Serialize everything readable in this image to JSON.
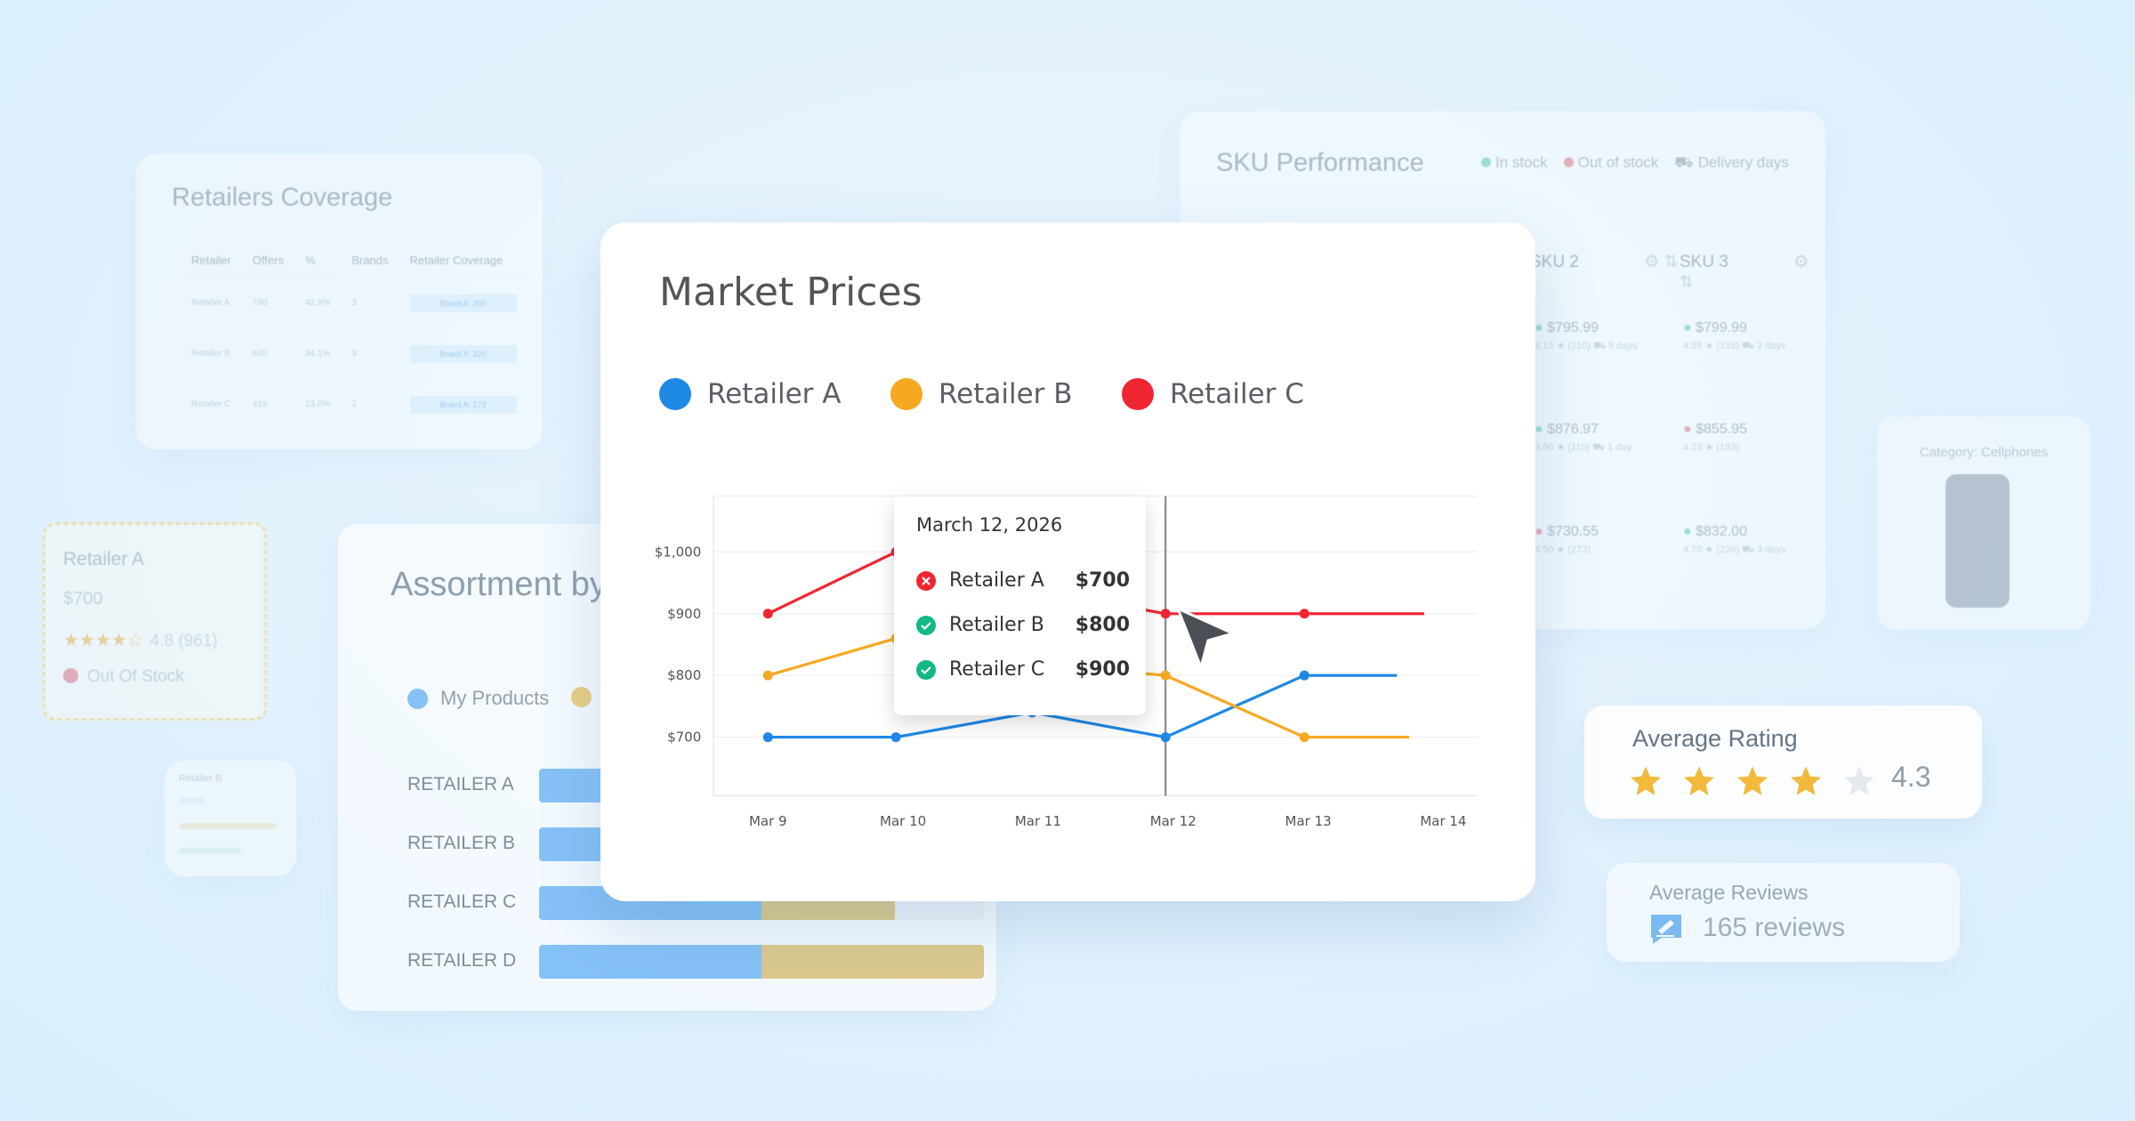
{
  "retailers_coverage": {
    "title": "Retailers Coverage",
    "headers": [
      "Retailer",
      "Offers",
      "%",
      "Brands",
      "Retailer Coverage"
    ],
    "rows": [
      {
        "retailer": "Retailer A",
        "offers": "780",
        "pct": "42.9%",
        "brands": "3",
        "coverage": "Brand A: 350"
      },
      {
        "retailer": "Retailer B",
        "offers": "620",
        "pct": "34.1%",
        "brands": "3",
        "coverage": "Brand A: 320"
      },
      {
        "retailer": "Retailer C",
        "offers": "419",
        "pct": "23.0%",
        "brands": "2",
        "coverage": "Brand A: 279"
      }
    ]
  },
  "sku_performance": {
    "title": "SKU Performance",
    "legend": [
      "In stock",
      "Out of stock",
      "Delivery days"
    ],
    "legend_colors": [
      "#35c29a",
      "#e05563",
      "#9aa4ae"
    ],
    "columns": [
      "SKU 2",
      "SKU 3"
    ],
    "cells": [
      [
        {
          "price": "$795.99",
          "meta": "4.13 ★ (210)  ⛟ 5 days"
        },
        {
          "price": "$799.99",
          "meta": "4.55 ★ (318)  ⛟ 2 days"
        }
      ],
      [
        {
          "price": "$876.97",
          "meta": "3.90 ★ (110)  ⛟ 1 day"
        },
        {
          "price": "$855.95",
          "meta": "4.23 ★ (183)"
        }
      ],
      [
        {
          "price": "$730.55",
          "meta": "4.50 ★ (273)"
        },
        {
          "price": "$832.00",
          "meta": "4.70 ★ (236)  ⛟ 3 days"
        }
      ]
    ]
  },
  "category": {
    "label": "Category: Cellphones"
  },
  "retailer_card": {
    "name": "Retailer A",
    "price": "$700",
    "stars": "★★★★☆",
    "rating": "4.8 (961)",
    "stock": "Out Of Stock"
  },
  "retailer_small": {
    "name": "Retailer B"
  },
  "assortment": {
    "title": "Assortment by",
    "legend": [
      "My Products"
    ],
    "rows": [
      {
        "label": "RETAILER A",
        "mine": 0.1,
        "other": 0.0
      },
      {
        "label": "RETAILER B",
        "mine": 0.08,
        "other": 0.02
      },
      {
        "label": "RETAILER C",
        "mine": 0.2,
        "other": 0.12
      },
      {
        "label": "RETAILER D",
        "mine": 0.2,
        "other": 0.21
      }
    ]
  },
  "average_rating": {
    "title": "Average Rating",
    "value": "4.3",
    "stars_filled": 4,
    "stars_total": 5
  },
  "average_reviews": {
    "title": "Average Reviews",
    "value": "165 reviews"
  },
  "market_prices": {
    "title": "Market Prices",
    "legend": [
      {
        "name": "Retailer A",
        "color": "#1e88e5"
      },
      {
        "name": "Retailer B",
        "color": "#f6a821"
      },
      {
        "name": "Retailer C",
        "color": "#ef2631"
      }
    ],
    "tooltip": {
      "date": "March 12, 2026",
      "rows": [
        {
          "name": "Retailer A",
          "price": "$700",
          "status": "out"
        },
        {
          "name": "Retailer B",
          "price": "$800",
          "status": "in"
        },
        {
          "name": "Retailer C",
          "price": "$900",
          "status": "in"
        }
      ]
    }
  },
  "chart_data": {
    "type": "line",
    "x": [
      "Mar 9",
      "Mar 10",
      "Mar 11",
      "Mar 12",
      "Mar 13",
      "Mar 14"
    ],
    "yticks": [
      "$700",
      "$800",
      "$900",
      "$1,000"
    ],
    "ylim": [
      600,
      1100
    ],
    "series": [
      {
        "name": "Retailer A",
        "color": "#1e88e5",
        "values": [
          700,
          700,
          740,
          700,
          800,
          800
        ]
      },
      {
        "name": "Retailer B",
        "color": "#f6a821",
        "values": [
          800,
          860,
          820,
          800,
          700,
          700
        ]
      },
      {
        "name": "Retailer C",
        "color": "#ef2631",
        "values": [
          900,
          1000,
          940,
          900,
          900,
          900
        ]
      }
    ],
    "highlight_x": "Mar 12"
  }
}
